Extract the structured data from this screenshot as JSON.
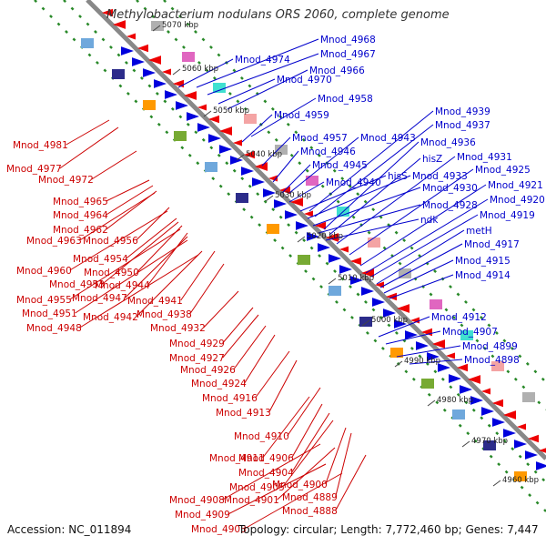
{
  "title": "Methylobacterium nodulans ORS 2060, complete genome",
  "footer": {
    "accession": "Accession: NC_011894",
    "topology": "Topology: circular; Length: 7,772,460 bp; Genes: 7,447"
  },
  "colors": {
    "backbone": "#888888",
    "forward_strand": "#0000dd",
    "reverse_strand": "#ee0000",
    "grid_dots": "#2a8a2a",
    "label_blue": "#0000cc",
    "label_red": "#cc0000"
  },
  "scale_ticks": [
    "5070 kbp",
    "5060 kbp",
    "5050 kbp",
    "5040 kbp",
    "5030 kbp",
    "5020 kbp",
    "5010 kbp",
    "5000 kbp",
    "4990 kbp",
    "4980 kbp",
    "4970 kbp",
    "4960 kbp"
  ],
  "labels_right": [
    "Mnod_4968",
    "Mnod_4974",
    "Mnod_4967",
    "Mnod_4970",
    "Mnod_4966",
    "Mnod_4958",
    "Mnod_4959",
    "Mnod_4939",
    "Mnod_4937",
    "Mnod_4957",
    "Mnod_4943",
    "Mnod_4936",
    "Mnod_4946",
    "Mnod_4931",
    "hisZ",
    "Mnod_4945",
    "Mnod_4925",
    "hisS",
    "Mnod_4933",
    "Mnod_4940",
    "Mnod_4921",
    "Mnod_4930",
    "Mnod_4920",
    "Mnod_4928",
    "ndk",
    "Mnod_4919",
    "metH",
    "Mnod_4917",
    "Mnod_4915",
    "Mnod_4914",
    "Mnod_4912",
    "Mnod_4907",
    "Mnod_4899",
    "Mnod_4898"
  ],
  "labels_left": [
    "Mnod_4981",
    "Mnod_4977",
    "Mnod_4972",
    "Mnod_4965",
    "Mnod_4964",
    "Mnod_4962",
    "Mnod_4963",
    "Mnod_4956",
    "Mnod_4954",
    "Mnod_4960",
    "Mnod_4950",
    "Mnod_4953",
    "Mnod_4944",
    "Mnod_4955",
    "Mnod_4947",
    "Mnod_4941",
    "Mnod_4951",
    "Mnod_4942",
    "Mnod_4938",
    "Mnod_4948",
    "Mnod_4932",
    "Mnod_4929",
    "Mnod_4927",
    "Mnod_4926",
    "Mnod_4924",
    "Mnod_4916",
    "Mnod_4913",
    "Mnod_4910",
    "Mnod_4911",
    "Mnod_4906",
    "Mnod_4904",
    "Mnod_4905",
    "Mnod_4900",
    "Mnod_4889",
    "Mnod_4908",
    "Mnod_4901",
    "Mnod_4888",
    "Mnod_4909",
    "Mnod_4903"
  ]
}
